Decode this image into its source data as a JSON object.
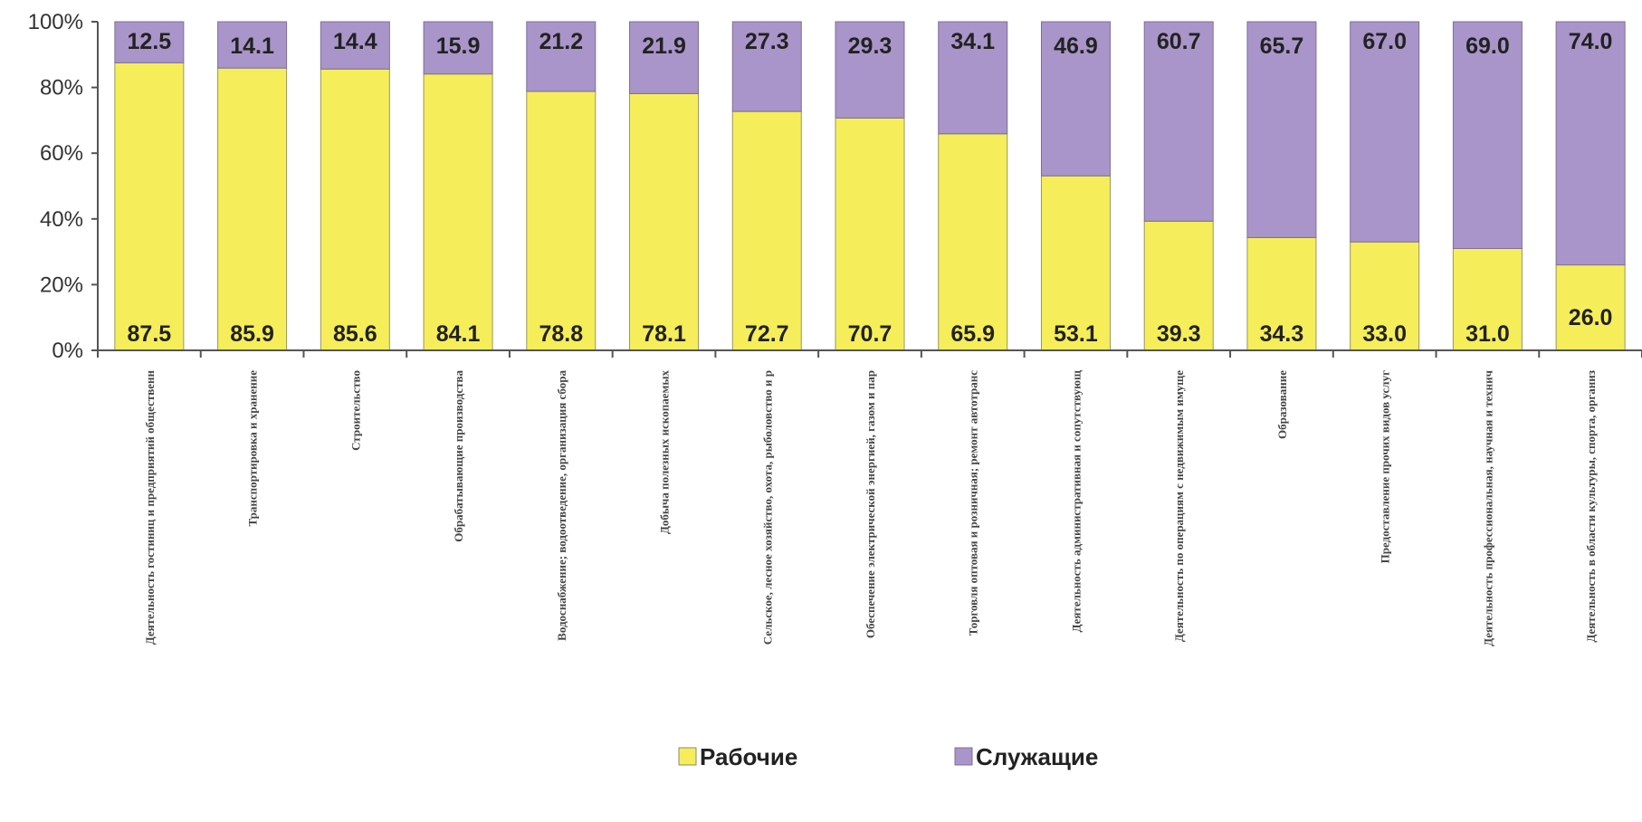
{
  "chart_data": {
    "type": "bar",
    "stacked": "percent",
    "ylim": [
      0,
      100
    ],
    "yticks": [
      "0%",
      "20%",
      "40%",
      "60%",
      "80%",
      "100%"
    ],
    "grid": false,
    "legend_position": "bottom",
    "categories": [
      "Деятельность гостиниц и предприятий общественн",
      "Транспортировка и хранение",
      "Строительство",
      "Обрабатывающие производства",
      "Водоснабжение; водоотведение, организация сбора",
      "Добыча полезных ископаемых",
      "Сельское, лесное хозяйство, охота, рыболовство и р",
      "Обеспечение электрической энергией, газом и пар",
      "Торговля оптовая и розничная; ремонт автотранс",
      "Деятельность административная и сопутствующ",
      "Деятельность по операциям с недвижимым имуще",
      "Образование",
      "Предоставление прочих видов услуг",
      "Деятельность профессиональная, научная и технич",
      "Деятельность в области культуры, спорта, организ"
    ],
    "series": [
      {
        "name": "Рабочие",
        "color": "#f5ee5a",
        "values": [
          87.5,
          85.9,
          85.6,
          84.1,
          78.8,
          78.1,
          72.7,
          70.7,
          65.9,
          53.1,
          39.3,
          34.3,
          33.0,
          31.0,
          26.0
        ],
        "labels": [
          "87.5",
          "85.9",
          "85.6",
          "84.1",
          "78.8",
          "78.1",
          "72.7",
          "70.7",
          "65.9",
          "53.1",
          "39.3",
          "34.3",
          "33.0",
          "31.0",
          "26.0"
        ]
      },
      {
        "name": "Служащие",
        "color": "#a995c9",
        "values": [
          12.5,
          14.1,
          14.4,
          15.9,
          21.2,
          21.9,
          27.3,
          29.3,
          34.1,
          46.9,
          60.7,
          65.7,
          67.0,
          69.0,
          74.0
        ],
        "labels": [
          "12.5",
          "14.1",
          "14.4",
          "15.9",
          "21.2",
          "21.9",
          "27.3",
          "29.3",
          "34.1",
          "46.9",
          "60.7",
          "65.7",
          "67.0",
          "69.0",
          "74.0"
        ]
      }
    ]
  }
}
